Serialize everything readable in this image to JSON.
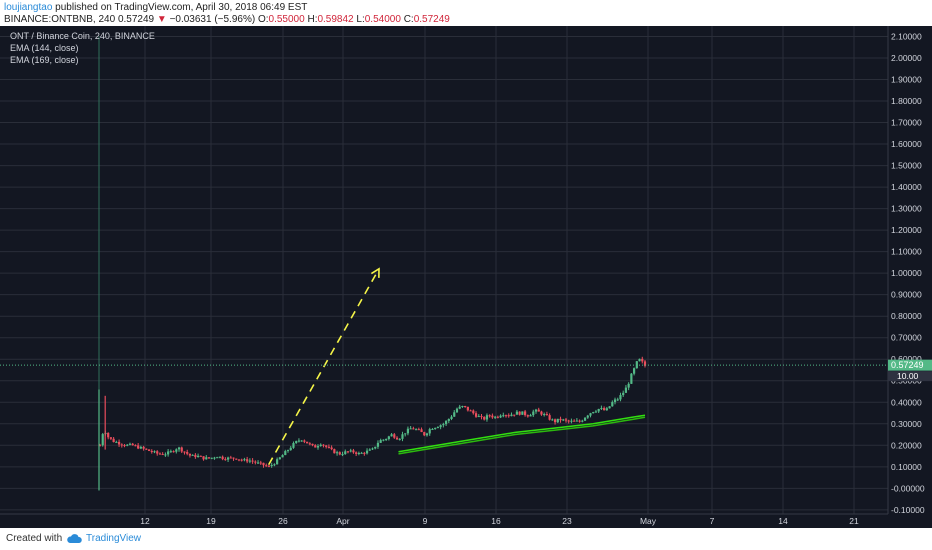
{
  "header": {
    "author": "loujiangtao",
    "published": "published on TradingView.com, April 30, 2018 06:49 EST",
    "symbol": "BINANCE:ONTBNB, 240",
    "last": "0.57249",
    "change_arrow": "▼",
    "change": "−0.03631 (−5.96%)",
    "o_label": "O:",
    "o_value": "0.55000",
    "h_label": "H:",
    "h_value": "0.59842",
    "l_label": "L:",
    "l_value": "0.54000",
    "c_label": "C:",
    "c_value": "0.57249"
  },
  "legend": {
    "title": "ONT / Binance Coin, 240, BINANCE",
    "ema1": "EMA (144, close)",
    "ema2": "EMA (169, close)"
  },
  "price_label": "0.57249",
  "volume_label": "10.00",
  "footer": {
    "created": "Created with",
    "brand": "TradingView"
  },
  "colors": {
    "background": "#131722",
    "grid": "#2a2e39",
    "axis_text": "#d1d4dc",
    "up": "#53b987",
    "down": "#eb4d5c",
    "ema": "#32e010",
    "arrow": "#f5f548",
    "price_badge": "#53b987"
  },
  "chart_data": {
    "type": "candlestick",
    "y_ticks": [
      "2.10000",
      "2.00000",
      "1.90000",
      "1.80000",
      "1.70000",
      "1.60000",
      "1.50000",
      "1.40000",
      "1.30000",
      "1.20000",
      "1.10000",
      "1.00000",
      "0.90000",
      "0.80000",
      "0.70000",
      "0.60000",
      "0.50000",
      "0.40000",
      "0.30000",
      "0.20000",
      "0.10000",
      "-0.00000",
      "-0.10000"
    ],
    "ylim": [
      -0.11,
      2.13
    ],
    "x_ticks": [
      "12",
      "19",
      "26",
      "Apr",
      "9",
      "16",
      "23",
      "May",
      "7",
      "14",
      "21"
    ],
    "price_series": [
      [
        0,
        0.2
      ],
      [
        0.3,
        0.28
      ],
      [
        0.6,
        0.24
      ],
      [
        1,
        0.22
      ],
      [
        1.5,
        0.21
      ],
      [
        2,
        0.2
      ],
      [
        2.5,
        0.2
      ],
      [
        3,
        0.19
      ],
      [
        3.5,
        0.18
      ],
      [
        4,
        0.17
      ],
      [
        4.5,
        0.16
      ],
      [
        5,
        0.16
      ],
      [
        5.5,
        0.17
      ],
      [
        6,
        0.19
      ],
      [
        6.5,
        0.17
      ],
      [
        7,
        0.15
      ],
      [
        7.5,
        0.15
      ],
      [
        8,
        0.14
      ],
      [
        8.5,
        0.14
      ],
      [
        9,
        0.15
      ],
      [
        9.5,
        0.14
      ],
      [
        10,
        0.14
      ],
      [
        10.5,
        0.14
      ],
      [
        11,
        0.13
      ],
      [
        11.5,
        0.13
      ],
      [
        12,
        0.12
      ],
      [
        12.5,
        0.11
      ],
      [
        13,
        0.1
      ],
      [
        13.5,
        0.12
      ],
      [
        14,
        0.15
      ],
      [
        14.5,
        0.18
      ],
      [
        15,
        0.21
      ],
      [
        15.5,
        0.23
      ],
      [
        16,
        0.21
      ],
      [
        16.5,
        0.19
      ],
      [
        17,
        0.21
      ],
      [
        17.5,
        0.19
      ],
      [
        18,
        0.17
      ],
      [
        18.5,
        0.16
      ],
      [
        19,
        0.17
      ],
      [
        19.5,
        0.17
      ],
      [
        20,
        0.16
      ],
      [
        20.5,
        0.17
      ],
      [
        21,
        0.18
      ],
      [
        21.5,
        0.22
      ],
      [
        22,
        0.23
      ],
      [
        22.5,
        0.25
      ],
      [
        23,
        0.23
      ],
      [
        23.5,
        0.26
      ],
      [
        24,
        0.28
      ],
      [
        24.5,
        0.27
      ],
      [
        25,
        0.25
      ],
      [
        25.5,
        0.28
      ],
      [
        26,
        0.29
      ],
      [
        26.5,
        0.3
      ],
      [
        27,
        0.33
      ],
      [
        27.5,
        0.37
      ],
      [
        28,
        0.38
      ],
      [
        28.5,
        0.36
      ],
      [
        29,
        0.34
      ],
      [
        29.5,
        0.32
      ],
      [
        30,
        0.34
      ],
      [
        30.5,
        0.33
      ],
      [
        31,
        0.35
      ],
      [
        31.5,
        0.34
      ],
      [
        32,
        0.35
      ],
      [
        32.5,
        0.35
      ],
      [
        33,
        0.34
      ],
      [
        33.5,
        0.36
      ],
      [
        34,
        0.35
      ],
      [
        34.5,
        0.33
      ],
      [
        35,
        0.31
      ],
      [
        35.5,
        0.32
      ],
      [
        36,
        0.31
      ],
      [
        36.5,
        0.31
      ],
      [
        37,
        0.31
      ],
      [
        37.5,
        0.34
      ],
      [
        38,
        0.36
      ],
      [
        38.5,
        0.37
      ],
      [
        39,
        0.36
      ],
      [
        39.5,
        0.4
      ],
      [
        40,
        0.42
      ],
      [
        40.5,
        0.46
      ],
      [
        41,
        0.53
      ],
      [
        41.5,
        0.6
      ],
      [
        42,
        0.57
      ]
    ],
    "ema_144": [
      [
        23,
        0.17
      ],
      [
        26,
        0.2
      ],
      [
        29,
        0.23
      ],
      [
        32,
        0.26
      ],
      [
        35,
        0.28
      ],
      [
        38,
        0.3
      ],
      [
        41,
        0.33
      ],
      [
        42,
        0.34
      ]
    ],
    "ema_169": [
      [
        23,
        0.16
      ],
      [
        26,
        0.19
      ],
      [
        29,
        0.22
      ],
      [
        32,
        0.25
      ],
      [
        35,
        0.27
      ],
      [
        38,
        0.29
      ],
      [
        41,
        0.32
      ],
      [
        42,
        0.33
      ]
    ],
    "projection_arrow": {
      "from": [
        13,
        0.11
      ],
      "to": [
        21.5,
        1.02
      ]
    }
  }
}
